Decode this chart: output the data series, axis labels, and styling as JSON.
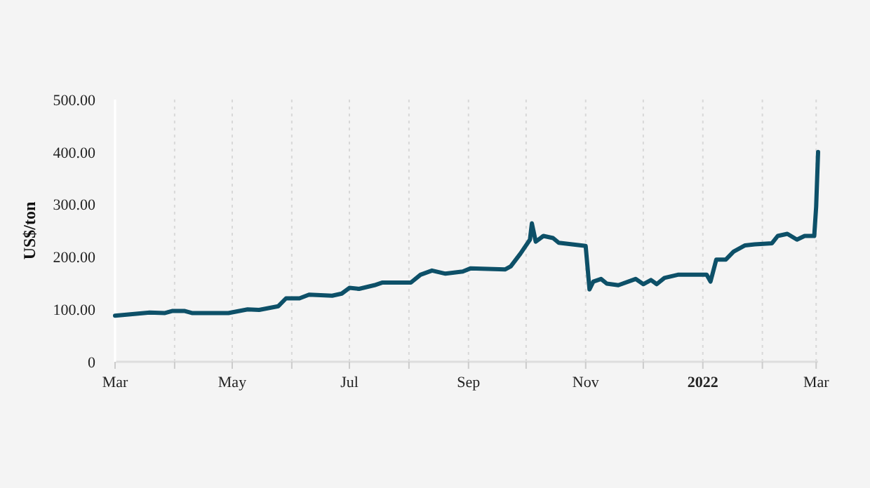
{
  "chart_data": {
    "type": "line",
    "ylabel": "US$/ton",
    "x": [
      "2021-03-01",
      "2021-03-19",
      "2021-03-27",
      "2021-03-31",
      "2021-04-06",
      "2021-04-10",
      "2021-04-29",
      "2021-05-09",
      "2021-05-15",
      "2021-05-25",
      "2021-05-29",
      "2021-06-05",
      "2021-06-10",
      "2021-06-22",
      "2021-06-27",
      "2021-07-01",
      "2021-07-06",
      "2021-07-14",
      "2021-07-18",
      "2021-08-02",
      "2021-08-07",
      "2021-08-13",
      "2021-08-20",
      "2021-08-29",
      "2021-09-02",
      "2021-09-20",
      "2021-09-23",
      "2021-09-28",
      "2021-10-03",
      "2021-10-04",
      "2021-10-06",
      "2021-10-10",
      "2021-10-15",
      "2021-10-18",
      "2021-11-01",
      "2021-11-03",
      "2021-11-05",
      "2021-11-09",
      "2021-11-12",
      "2021-11-18",
      "2021-11-27",
      "2021-12-01",
      "2021-12-05",
      "2021-12-08",
      "2021-12-12",
      "2021-12-19",
      "2022-01-03",
      "2022-01-05",
      "2022-01-08",
      "2022-01-13",
      "2022-01-17",
      "2022-01-23",
      "2022-01-28",
      "2022-02-06",
      "2022-02-09",
      "2022-02-14",
      "2022-02-19",
      "2022-02-23",
      "2022-02-28",
      "2022-03-01",
      "2022-03-02"
    ],
    "series": [
      {
        "color": "#0d5068",
        "values": [
          88,
          94,
          93,
          97,
          97,
          93,
          93,
          100,
          99,
          106,
          121,
          121,
          128,
          126,
          130,
          141,
          139,
          146,
          151,
          151,
          166,
          174,
          168,
          172,
          178,
          176,
          182,
          206,
          233,
          264,
          229,
          240,
          236,
          227,
          221,
          138,
          153,
          158,
          149,
          146,
          158,
          148,
          156,
          148,
          160,
          166,
          166,
          153,
          195,
          195,
          210,
          222,
          224,
          226,
          240,
          244,
          233,
          240,
          240,
          296,
          400
        ]
      }
    ],
    "xlim": [
      "2021-03-01",
      "2022-03-02"
    ],
    "xticks": [
      {
        "value": "2021-03-01",
        "label": "Mar"
      },
      {
        "value": "2021-04-01",
        "label": null
      },
      {
        "value": "2021-05-01",
        "label": "May"
      },
      {
        "value": "2021-06-01",
        "label": null
      },
      {
        "value": "2021-07-01",
        "label": "Jul"
      },
      {
        "value": "2021-08-01",
        "label": null
      },
      {
        "value": "2021-09-01",
        "label": "Sep"
      },
      {
        "value": "2021-10-01",
        "label": null
      },
      {
        "value": "2021-11-01",
        "label": "Nov"
      },
      {
        "value": "2021-12-01",
        "label": null
      },
      {
        "value": "2022-01-01",
        "label": "2022"
      },
      {
        "value": "2022-02-01",
        "label": null
      },
      {
        "value": "2022-03-01",
        "label": "Mar"
      }
    ],
    "ylim": [
      0,
      500
    ],
    "yticks": [
      {
        "value": 0,
        "label": "0"
      },
      {
        "value": 100,
        "label": "100.00"
      },
      {
        "value": 200,
        "label": "200.00"
      },
      {
        "value": 300,
        "label": "300.00"
      },
      {
        "value": 400,
        "label": "400.00"
      },
      {
        "value": 500,
        "label": "500.00"
      }
    ],
    "grid": "x",
    "marker": "none",
    "line_style": "solid"
  }
}
